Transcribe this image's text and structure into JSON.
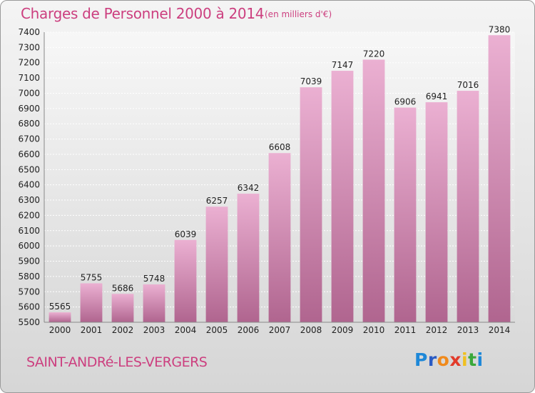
{
  "title": "Charges de Personnel 2000 à 2014",
  "subtitle": "(en milliers d'€)",
  "commune": "SAINT-ANDRé-LES-VERGERS",
  "logo": {
    "letters": [
      "P",
      "r",
      "o",
      "x",
      "i",
      "t",
      "i"
    ],
    "colors": [
      "#1e88d8",
      "#2a5bc4",
      "#f08a1c",
      "#e23a2a",
      "#f0c020",
      "#3aa83a",
      "#1e88d8"
    ]
  },
  "colors": {
    "title": "#cc3f7f",
    "bar_top": "#ebb0d2",
    "bar_bottom": "#b0658f"
  },
  "chart_data": {
    "type": "bar",
    "title": "Charges de Personnel 2000 à 2014",
    "categories": [
      "2000",
      "2001",
      "2002",
      "2003",
      "2004",
      "2005",
      "2006",
      "2007",
      "2008",
      "2009",
      "2010",
      "2011",
      "2012",
      "2013",
      "2014"
    ],
    "values": [
      5565,
      5755,
      5686,
      5748,
      6039,
      6257,
      6342,
      6608,
      7039,
      7147,
      7220,
      6906,
      6941,
      7016,
      7380
    ],
    "ylim": [
      5500,
      7400
    ],
    "yticks": [
      5500,
      5600,
      5700,
      5800,
      5900,
      6000,
      6100,
      6200,
      6300,
      6400,
      6500,
      6600,
      6700,
      6800,
      6900,
      7000,
      7100,
      7200,
      7300,
      7400
    ],
    "grid": true,
    "xlabel": "",
    "ylabel": ""
  }
}
